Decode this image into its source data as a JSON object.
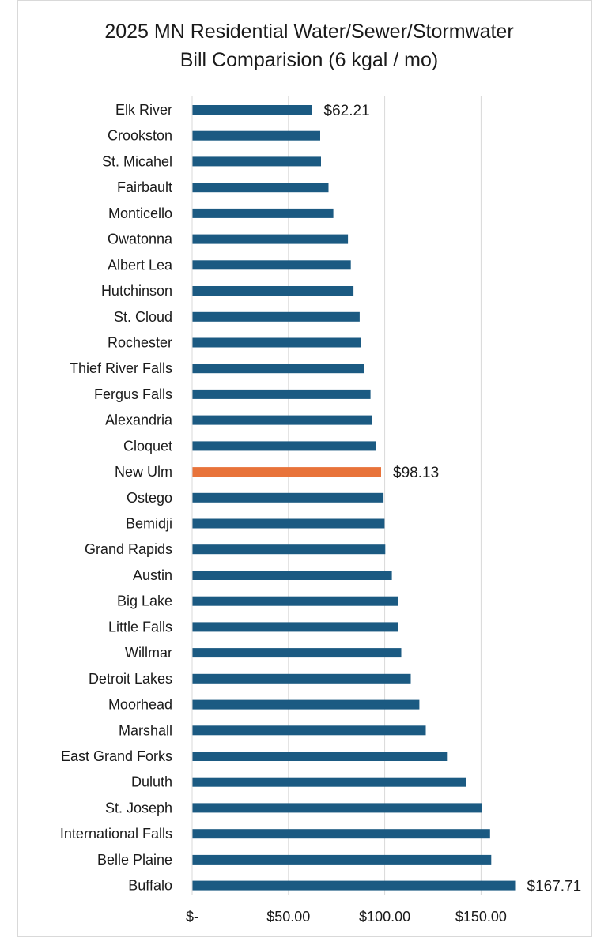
{
  "chart_data": {
    "type": "bar",
    "orientation": "horizontal",
    "title": "2025 MN Residential Water/Sewer/Stormwater",
    "subtitle": "Bill Comparision (6 kgal / mo)",
    "categories": [
      "Elk River",
      "Crookston",
      "St. Micahel",
      "Fairbault",
      "Monticello",
      "Owatonna",
      "Albert Lea",
      "Hutchinson",
      "St. Cloud",
      "Rochester",
      "Thief River Falls",
      "Fergus Falls",
      "Alexandria",
      "Cloquet",
      "New Ulm",
      "Ostego",
      "Bemidji",
      "Grand Rapids",
      "Austin",
      "Big Lake",
      "Little Falls",
      "Willmar",
      "Detroit Lakes",
      "Moorhead",
      "Marshall",
      "East Grand Forks",
      "Duluth",
      "St. Joseph",
      "International Falls",
      "Belle Plaine",
      "Buffalo"
    ],
    "values": [
      62.21,
      66.5,
      66.9,
      70.8,
      73.3,
      80.9,
      82.4,
      83.8,
      87.0,
      87.7,
      89.2,
      92.6,
      93.6,
      95.3,
      98.13,
      99.4,
      99.9,
      100.3,
      103.7,
      106.9,
      107.0,
      108.6,
      113.5,
      118.0,
      121.3,
      132.3,
      142.3,
      150.5,
      154.7,
      155.3,
      167.71
    ],
    "highlight_index": 14,
    "colors": {
      "bar": "#1b5a82",
      "highlight": "#e8733a",
      "grid": "#d9d9d9"
    },
    "data_labels": [
      {
        "index": 0,
        "text": "$62.21"
      },
      {
        "index": 14,
        "text": "$98.13"
      },
      {
        "index": 30,
        "text": "$167.71"
      }
    ],
    "x_ticks": [
      {
        "value": 0,
        "label": "$-"
      },
      {
        "value": 50,
        "label": "$50.00"
      },
      {
        "value": 100,
        "label": "$100.00"
      },
      {
        "value": 150,
        "label": "$150.00"
      }
    ],
    "xlim": [
      0,
      150
    ],
    "grid": true,
    "legend": "none"
  }
}
